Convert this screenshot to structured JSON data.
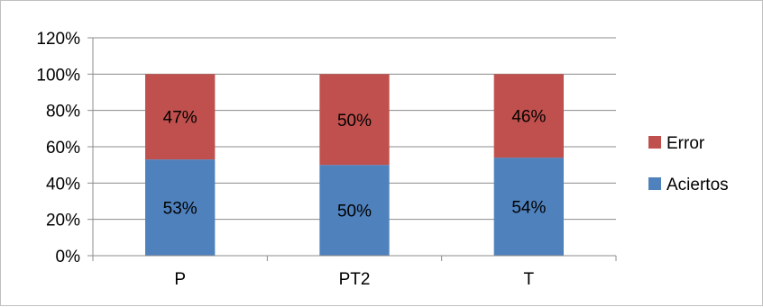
{
  "chart_data": {
    "type": "bar",
    "stacked": true,
    "categories": [
      "P",
      "PT2",
      "T"
    ],
    "series": [
      {
        "name": "Aciertos",
        "values": [
          53,
          50,
          54
        ],
        "labels": [
          "53%",
          "50%",
          "54%"
        ],
        "color": "#4f81bd"
      },
      {
        "name": "Error",
        "values": [
          47,
          50,
          46
        ],
        "labels": [
          "47%",
          "50%",
          "46%"
        ],
        "color": "#c0504d"
      }
    ],
    "ylim": [
      0,
      120
    ],
    "yticks": [
      0,
      20,
      40,
      60,
      80,
      100,
      120
    ],
    "ytick_labels": [
      "0%",
      "20%",
      "40%",
      "60%",
      "80%",
      "100%",
      "120%"
    ],
    "grid": true,
    "legend": {
      "position": "right",
      "order": [
        "Error",
        "Aciertos"
      ]
    },
    "title": "",
    "xlabel": "",
    "ylabel": ""
  }
}
